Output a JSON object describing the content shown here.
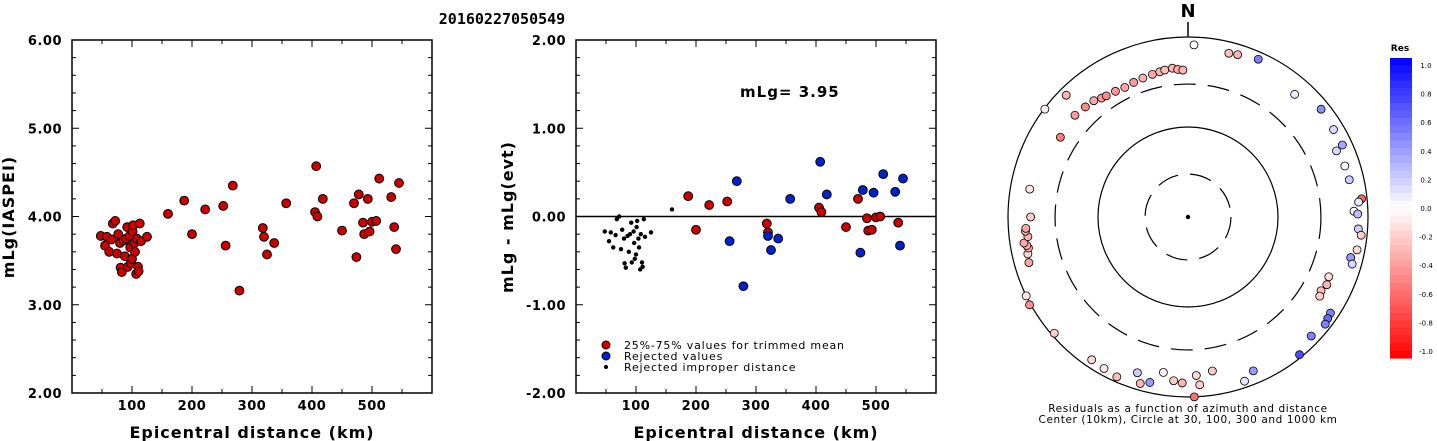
{
  "title": "20160227050549",
  "chart_data": [
    {
      "type": "scatter",
      "name": "panel-1",
      "xlabel": "Epicentral distance (km)",
      "ylabel": "mLg(IASPEI)",
      "xlim": [
        0,
        600
      ],
      "ylim": [
        2.0,
        6.0
      ],
      "xticks": [
        100,
        200,
        300,
        400,
        500
      ],
      "yticks": [
        "2.00",
        "3.00",
        "4.00",
        "5.00",
        "6.00"
      ],
      "ytick_values": [
        2,
        3,
        4,
        5,
        6
      ],
      "series": [
        {
          "color": "#cc0000",
          "points": [
            [
              48,
              3.78
            ],
            [
              55,
              3.67
            ],
            [
              58,
              3.77
            ],
            [
              62,
              3.6
            ],
            [
              66,
              3.74
            ],
            [
              68,
              3.92
            ],
            [
              72,
              3.95
            ],
            [
              75,
              3.58
            ],
            [
              77,
              3.8
            ],
            [
              80,
              3.7
            ],
            [
              81,
              3.42
            ],
            [
              83,
              3.37
            ],
            [
              86,
              3.73
            ],
            [
              88,
              3.55
            ],
            [
              90,
              3.75
            ],
            [
              92,
              3.88
            ],
            [
              93,
              3.43
            ],
            [
              96,
              3.78
            ],
            [
              97,
              3.65
            ],
            [
              98,
              3.47
            ],
            [
              100,
              3.52
            ],
            [
              101,
              3.83
            ],
            [
              102,
              3.9
            ],
            [
              104,
              3.7
            ],
            [
              105,
              3.6
            ],
            [
              107,
              3.35
            ],
            [
              108,
              3.75
            ],
            [
              110,
              3.43
            ],
            [
              111,
              3.38
            ],
            [
              113,
              3.92
            ],
            [
              115,
              3.72
            ],
            [
              125,
              3.77
            ],
            [
              160,
              4.03
            ],
            [
              187,
              4.18
            ],
            [
              200,
              3.8
            ],
            [
              222,
              4.08
            ],
            [
              252,
              4.12
            ],
            [
              256,
              3.67
            ],
            [
              268,
              4.35
            ],
            [
              279,
              3.16
            ],
            [
              318,
              3.87
            ],
            [
              320,
              3.77
            ],
            [
              325,
              3.57
            ],
            [
              337,
              3.7
            ],
            [
              357,
              4.15
            ],
            [
              405,
              4.05
            ],
            [
              407,
              4.57
            ],
            [
              409,
              4.0
            ],
            [
              418,
              4.2
            ],
            [
              450,
              3.84
            ],
            [
              470,
              4.15
            ],
            [
              474,
              3.54
            ],
            [
              478,
              4.25
            ],
            [
              485,
              3.93
            ],
            [
              487,
              3.8
            ],
            [
              493,
              4.2
            ],
            [
              496,
              3.83
            ],
            [
              500,
              3.94
            ],
            [
              507,
              3.95
            ],
            [
              512,
              4.43
            ],
            [
              532,
              4.22
            ],
            [
              537,
              3.88
            ],
            [
              540,
              3.63
            ],
            [
              545,
              4.38
            ]
          ]
        }
      ]
    },
    {
      "type": "scatter",
      "name": "panel-2",
      "xlabel": "Epicentral distance (km)",
      "ylabel": "mLg - mLg(evt)",
      "xlim": [
        0,
        600
      ],
      "ylim": [
        -2.0,
        2.0
      ],
      "xticks": [
        100,
        200,
        300,
        400,
        500
      ],
      "yticks": [
        "-2.00",
        "-1.00",
        "0.00",
        "1.00",
        "2.00"
      ],
      "ytick_values": [
        -2,
        -1,
        0,
        1,
        2
      ],
      "annotation": "mLg= 3.95",
      "reference_line": 0,
      "legend": [
        "25%-75% values for trimmed mean",
        "Rejected values",
        "Rejected improper distance"
      ],
      "series": [
        {
          "marker": "red",
          "points": [
            [
              187,
              0.23
            ],
            [
              222,
              0.13
            ],
            [
              252,
              0.17
            ],
            [
              200,
              -0.15
            ],
            [
              318,
              -0.08
            ],
            [
              320,
              -0.18
            ],
            [
              405,
              0.1
            ],
            [
              409,
              0.05
            ],
            [
              450,
              -0.12
            ],
            [
              470,
              0.2
            ],
            [
              485,
              -0.02
            ],
            [
              487,
              -0.16
            ],
            [
              493,
              -0.15
            ],
            [
              500,
              -0.01
            ],
            [
              507,
              0.0
            ],
            [
              537,
              -0.07
            ]
          ]
        },
        {
          "marker": "blue",
          "points": [
            [
              256,
              -0.28
            ],
            [
              268,
              0.4
            ],
            [
              279,
              -0.79
            ],
            [
              320,
              -0.22
            ],
            [
              325,
              -0.38
            ],
            [
              337,
              -0.25
            ],
            [
              357,
              0.2
            ],
            [
              407,
              0.62
            ],
            [
              418,
              0.25
            ],
            [
              474,
              -0.41
            ],
            [
              478,
              0.3
            ],
            [
              496,
              0.27
            ],
            [
              512,
              0.48
            ],
            [
              532,
              0.28
            ],
            [
              540,
              -0.33
            ],
            [
              545,
              0.43
            ]
          ]
        },
        {
          "marker": "black-dot",
          "points": [
            [
              48,
              -0.17
            ],
            [
              55,
              -0.28
            ],
            [
              58,
              -0.18
            ],
            [
              62,
              -0.35
            ],
            [
              66,
              -0.21
            ],
            [
              68,
              -0.03
            ],
            [
              72,
              0.0
            ],
            [
              75,
              -0.37
            ],
            [
              77,
              -0.15
            ],
            [
              80,
              -0.25
            ],
            [
              81,
              -0.53
            ],
            [
              83,
              -0.58
            ],
            [
              86,
              -0.22
            ],
            [
              88,
              -0.4
            ],
            [
              90,
              -0.2
            ],
            [
              92,
              -0.07
            ],
            [
              93,
              -0.52
            ],
            [
              96,
              -0.17
            ],
            [
              97,
              -0.3
            ],
            [
              98,
              -0.48
            ],
            [
              100,
              -0.43
            ],
            [
              101,
              -0.12
            ],
            [
              102,
              -0.05
            ],
            [
              104,
              -0.25
            ],
            [
              105,
              -0.35
            ],
            [
              107,
              -0.6
            ],
            [
              108,
              -0.2
            ],
            [
              110,
              -0.52
            ],
            [
              111,
              -0.57
            ],
            [
              113,
              -0.03
            ],
            [
              115,
              -0.23
            ],
            [
              125,
              -0.18
            ],
            [
              160,
              0.08
            ]
          ]
        }
      ]
    },
    {
      "type": "polar-scatter",
      "name": "panel-3",
      "north_label": "N",
      "caption_line1": "Residuals as a function of azimuth and distance",
      "caption_line2": "Center (10km), Circle at 30, 100, 300 and 1000 km",
      "circles_km": [
        30,
        100,
        300,
        1000
      ],
      "colorbar": {
        "title": "Res",
        "ticks": [
          "1.0",
          "0.8",
          "0.6",
          "0.4",
          "0.2",
          "0.0",
          "-0.2",
          "-0.4",
          "-0.6",
          "-0.8",
          "-1.0"
        ],
        "max_color": "#0000ff",
        "min_color": "#ff0000"
      },
      "points": [
        {
          "az": 2,
          "dist_km": 820,
          "res": 0.0
        },
        {
          "az": 14,
          "dist_km": 750,
          "res": -0.25
        },
        {
          "az": 17,
          "dist_km": 770,
          "res": -0.3
        },
        {
          "az": 24,
          "dist_km": 830,
          "res": 0.5
        },
        {
          "az": 41,
          "dist_km": 640,
          "res": 0.08
        },
        {
          "az": 51,
          "dist_km": 800,
          "res": 0.45
        },
        {
          "az": 59,
          "dist_km": 770,
          "res": 0.15
        },
        {
          "az": 65,
          "dist_km": 780,
          "res": 0.35
        },
        {
          "az": 66,
          "dist_km": 640,
          "res": 0.15
        },
        {
          "az": 72,
          "dist_km": 680,
          "res": 0.05
        },
        {
          "az": 77,
          "dist_km": 690,
          "res": 0.2
        },
        {
          "az": 84,
          "dist_km": 870,
          "res": -0.6
        },
        {
          "az": 85,
          "dist_km": 800,
          "res": 0.1
        },
        {
          "az": 88,
          "dist_km": 700,
          "res": 0.03
        },
        {
          "az": 89,
          "dist_km": 770,
          "res": 0.25
        },
        {
          "az": 94,
          "dist_km": 790,
          "res": 0.2
        },
        {
          "az": 96,
          "dist_km": 860,
          "res": -0.2
        },
        {
          "az": 101,
          "dist_km": 820,
          "res": -0.15
        },
        {
          "az": 104,
          "dist_km": 730,
          "res": 0.4
        },
        {
          "az": 106,
          "dist_km": 790,
          "res": 0.15
        },
        {
          "az": 113,
          "dist_km": 500,
          "res": -0.15
        },
        {
          "az": 116,
          "dist_km": 520,
          "res": -0.3
        },
        {
          "az": 119,
          "dist_km": 490,
          "res": -0.25
        },
        {
          "az": 121,
          "dist_km": 510,
          "res": -0.2
        },
        {
          "az": 124,
          "dist_km": 810,
          "res": 0.5
        },
        {
          "az": 126,
          "dist_km": 830,
          "res": 0.6
        },
        {
          "az": 128,
          "dist_km": 860,
          "res": 0.5
        },
        {
          "az": 134,
          "dist_km": 800,
          "res": 0.5
        },
        {
          "az": 141,
          "dist_km": 930,
          "res": 0.7
        },
        {
          "az": 157,
          "dist_km": 720,
          "res": 0.4
        },
        {
          "az": 161,
          "dist_km": 850,
          "res": 0.1
        },
        {
          "az": 171,
          "dist_km": 540,
          "res": -0.2
        },
        {
          "az": 176,
          "dist_km": 740,
          "res": -0.2
        },
        {
          "az": 177,
          "dist_km": 580,
          "res": -0.15
        },
        {
          "az": 178,
          "dist_km": 1000,
          "res": -0.55
        },
        {
          "az": 182,
          "dist_km": 700,
          "res": -0.3
        },
        {
          "az": 185,
          "dist_km": 670,
          "res": -0.2
        },
        {
          "az": 189,
          "dist_km": 560,
          "res": -0.05
        },
        {
          "az": 193,
          "dist_km": 770,
          "res": 0.4
        },
        {
          "az": 196,
          "dist_km": 840,
          "res": -0.3
        },
        {
          "az": 198,
          "dist_km": 660,
          "res": 0.2
        },
        {
          "az": 204,
          "dist_km": 880,
          "res": -0.25
        },
        {
          "az": 209,
          "dist_km": 840,
          "res": -0.1
        },
        {
          "az": 214,
          "dist_km": 820,
          "res": -0.15
        },
        {
          "az": 229,
          "dist_km": 930,
          "res": -0.2
        },
        {
          "az": 241,
          "dist_km": 1030,
          "res": -0.45
        },
        {
          "az": 244,
          "dist_km": 1000,
          "res": -0.1
        },
        {
          "az": 254,
          "dist_km": 690,
          "res": -0.35
        },
        {
          "az": 257,
          "dist_km": 670,
          "res": -0.15
        },
        {
          "az": 259,
          "dist_km": 640,
          "res": -0.35
        },
        {
          "az": 260,
          "dist_km": 660,
          "res": -0.3
        },
        {
          "az": 261,
          "dist_km": 700,
          "res": -0.35
        },
        {
          "az": 263,
          "dist_km": 620,
          "res": -0.3
        },
        {
          "az": 265,
          "dist_km": 650,
          "res": -0.3
        },
        {
          "az": 266,
          "dist_km": 640,
          "res": -0.35
        },
        {
          "az": 270,
          "dist_km": 560,
          "res": -0.2
        },
        {
          "az": 280,
          "dist_km": 610,
          "res": -0.1
        },
        {
          "az": 302,
          "dist_km": 470,
          "res": -0.5
        },
        {
          "az": 307,
          "dist_km": 980,
          "res": -0.05
        },
        {
          "az": 312,
          "dist_km": 490,
          "res": -0.4
        },
        {
          "az": 315,
          "dist_km": 820,
          "res": -0.3
        },
        {
          "az": 317,
          "dist_km": 470,
          "res": -0.45
        },
        {
          "az": 321,
          "dist_km": 460,
          "res": -0.35
        },
        {
          "az": 324,
          "dist_km": 430,
          "res": -0.4
        },
        {
          "az": 326,
          "dist_km": 420,
          "res": -0.45
        },
        {
          "az": 330,
          "dist_km": 410,
          "res": -0.4
        },
        {
          "az": 334,
          "dist_km": 400,
          "res": -0.35
        },
        {
          "az": 338,
          "dist_km": 410,
          "res": -0.4
        },
        {
          "az": 342,
          "dist_km": 420,
          "res": -0.3
        },
        {
          "az": 346,
          "dist_km": 430,
          "res": -0.35
        },
        {
          "az": 349,
          "dist_km": 440,
          "res": -0.3
        },
        {
          "az": 351,
          "dist_km": 450,
          "res": -0.25
        },
        {
          "az": 354,
          "dist_km": 460,
          "res": -0.3
        },
        {
          "az": 356,
          "dist_km": 440,
          "res": -0.35
        },
        {
          "az": 358,
          "dist_km": 430,
          "res": -0.3
        }
      ]
    }
  ]
}
